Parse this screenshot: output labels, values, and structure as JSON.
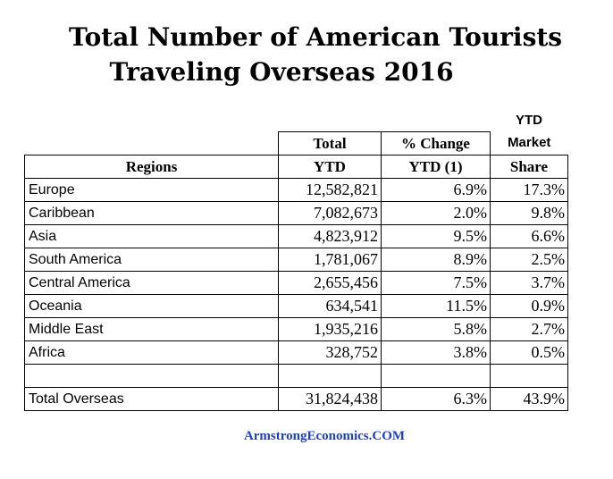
{
  "title_line1": "Total Number of American Tourists",
  "title_line2": "Traveling Overseas 2016",
  "footer": "ArmstrongEconomics.COM",
  "header": {
    "regions": "Regions",
    "total_top": "Total",
    "total_bottom": "YTD",
    "change_top": "% Change",
    "change_bottom": "YTD (1)",
    "share_top1": "YTD",
    "share_top2": "Market",
    "share_bottom": "Share"
  },
  "chart_data": {
    "type": "table",
    "title": "Total Number of American Tourists Traveling Overseas 2016",
    "columns": [
      "Regions",
      "Total YTD",
      "% Change YTD (1)",
      "YTD Market Share"
    ],
    "rows": [
      {
        "region": "Europe",
        "total": "12,582,821",
        "change": "6.9%",
        "share": "17.3%"
      },
      {
        "region": "Caribbean",
        "total": "7,082,673",
        "change": "2.0%",
        "share": "9.8%"
      },
      {
        "region": "Asia",
        "total": "4,823,912",
        "change": "9.5%",
        "share": "6.6%"
      },
      {
        "region": "South America",
        "total": "1,781,067",
        "change": "8.9%",
        "share": "2.5%"
      },
      {
        "region": "Central America",
        "total": "2,655,456",
        "change": "7.5%",
        "share": "3.7%"
      },
      {
        "region": "Oceania",
        "total": "634,541",
        "change": "11.5%",
        "share": "0.9%"
      },
      {
        "region": "Middle East",
        "total": "1,935,216",
        "change": "5.8%",
        "share": "2.7%"
      },
      {
        "region": "Africa",
        "total": "328,752",
        "change": "3.8%",
        "share": "0.5%"
      }
    ],
    "total_row": {
      "region": "Total Overseas",
      "total": "31,824,438",
      "change": "6.3%",
      "share": "43.9%"
    }
  }
}
